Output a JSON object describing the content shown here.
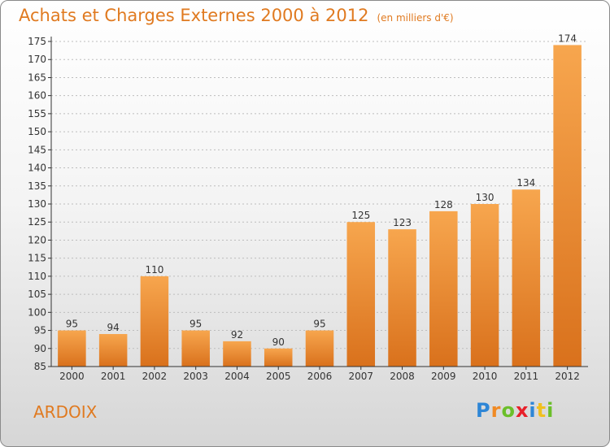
{
  "title": "Achats et Charges Externes 2000 à 2012",
  "unit_label": "(en milliers d'€)",
  "commune": "ARDOIX",
  "logo": {
    "letters": [
      {
        "ch": "P",
        "color": "#2e86d6"
      },
      {
        "ch": "r",
        "color": "#f08a24"
      },
      {
        "ch": "o",
        "color": "#6bbf2a"
      },
      {
        "ch": "x",
        "color": "#e8202a"
      },
      {
        "ch": "i",
        "color": "#2e86d6"
      },
      {
        "ch": "t",
        "color": "#f0c020"
      },
      {
        "ch": "i",
        "color": "#6bbf2a"
      }
    ]
  },
  "colors": {
    "title": "#e07a20",
    "bar_light": "#f7a64e",
    "bar_dark": "#d9711c",
    "axis": "#333333",
    "grid": "#bdbdbd"
  },
  "chart_data": {
    "type": "bar",
    "categories": [
      "2000",
      "2001",
      "2002",
      "2003",
      "2004",
      "2005",
      "2006",
      "2007",
      "2008",
      "2009",
      "2010",
      "2011",
      "2012"
    ],
    "values": [
      95,
      94,
      110,
      95,
      92,
      90,
      95,
      125,
      123,
      128,
      130,
      134,
      174
    ],
    "ylim": [
      85,
      175
    ],
    "ytick_step": 5,
    "grid": true,
    "title": "Achats et Charges Externes 2000 à 2012",
    "xlabel": "",
    "ylabel": ""
  }
}
